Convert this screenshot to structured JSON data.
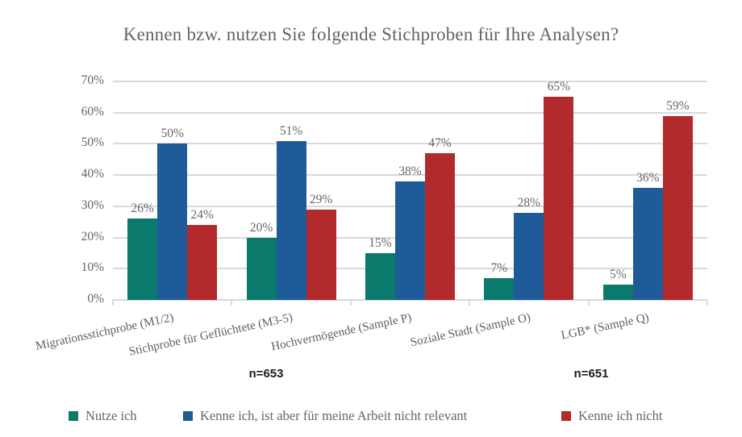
{
  "chart_data": {
    "type": "bar",
    "title": "Kennen bzw. nutzen Sie folgende Stichproben für Ihre Analysen?",
    "categories": [
      "Migrationsstichprobe (M1/2)",
      "Stichprobe für Geflüchtete (M3-5)",
      "Hochvermögende (Sample P)",
      "Soziale Stadt (Sample O)",
      "LGB* (Sample Q)"
    ],
    "series": [
      {
        "name": "Nutze ich",
        "color": "#0a7a6c",
        "values": [
          26,
          20,
          15,
          7,
          5
        ]
      },
      {
        "name": "Kenne ich, ist aber für meine Arbeit nicht relevant",
        "color": "#1f5a99",
        "values": [
          50,
          51,
          38,
          28,
          36
        ]
      },
      {
        "name": "Kenne ich nicht",
        "color": "#b22a2c",
        "values": [
          24,
          29,
          47,
          65,
          59
        ]
      }
    ],
    "value_suffix": "%",
    "ylim": [
      0,
      70
    ],
    "ytick_step": 10,
    "ytick_labels": [
      "0%",
      "10%",
      "20%",
      "30%",
      "40%",
      "50%",
      "60%",
      "70%"
    ],
    "grid": true,
    "legend_position": "bottom",
    "annotations": [
      "n=653",
      "n=651"
    ],
    "colors": {
      "grid": "#d9d9d9",
      "axis": "#d9d9d9",
      "text": "#666666",
      "title_text": "#646464",
      "annotation_text": "#1c1c1c",
      "background": "#ffffff"
    }
  }
}
